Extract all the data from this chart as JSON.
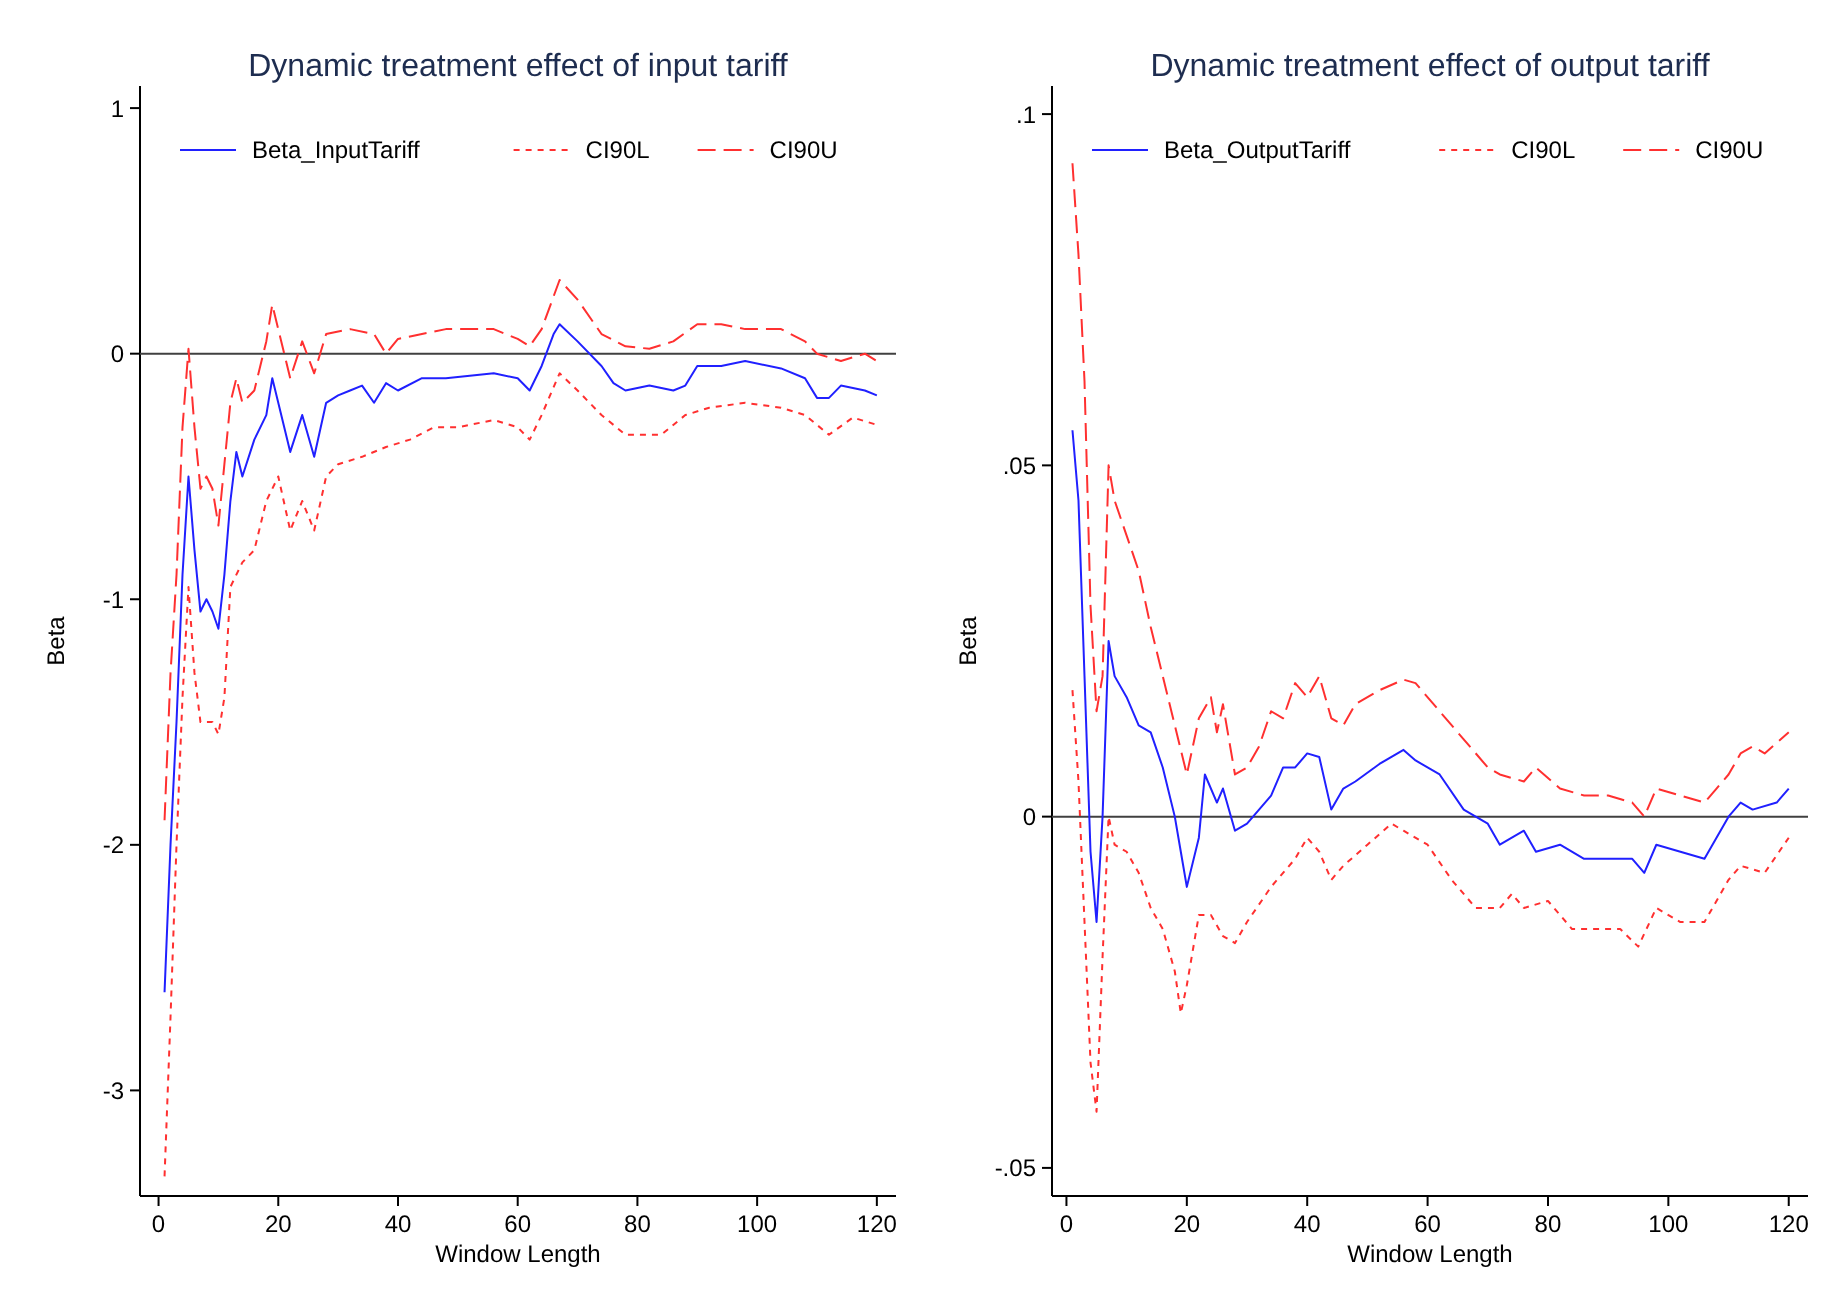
{
  "chart_data": [
    {
      "type": "line",
      "title": "Dynamic treatment effect of input tariff",
      "xlabel": "Window Length",
      "ylabel": "Beta",
      "xlim": [
        -3.1,
        123.2
      ],
      "ylim": [
        -3.43,
        1.09
      ],
      "xticks": [
        0,
        20,
        40,
        60,
        80,
        100,
        120
      ],
      "yticks": [
        -3,
        -2,
        -1,
        0,
        1
      ],
      "grid": false,
      "legend": "top",
      "marker": "none",
      "ref_lines": [
        {
          "axis": "y",
          "value": 0,
          "color": "#404040"
        }
      ],
      "series": [
        {
          "name": "Beta_InputTariff",
          "color": "#2020ff",
          "line_style": "solid",
          "x": [
            1,
            2,
            3,
            4,
            5,
            6,
            7,
            8,
            9,
            10,
            11,
            12,
            13,
            14,
            16,
            18,
            19,
            20,
            22,
            24,
            26,
            28,
            30,
            32,
            34,
            36,
            38,
            40,
            44,
            48,
            52,
            56,
            60,
            62,
            64,
            66,
            67,
            70,
            74,
            76,
            78,
            82,
            86,
            88,
            90,
            94,
            98,
            104,
            108,
            110,
            112,
            114,
            118,
            120
          ],
          "values": [
            -2.6,
            -2.0,
            -1.5,
            -0.9,
            -0.5,
            -0.8,
            -1.05,
            -1.0,
            -1.05,
            -1.12,
            -0.9,
            -0.6,
            -0.4,
            -0.5,
            -0.35,
            -0.25,
            -0.1,
            -0.2,
            -0.4,
            -0.25,
            -0.42,
            -0.2,
            -0.17,
            -0.15,
            -0.13,
            -0.2,
            -0.12,
            -0.15,
            -0.1,
            -0.1,
            -0.09,
            -0.08,
            -0.1,
            -0.15,
            -0.05,
            0.08,
            0.12,
            0.05,
            -0.05,
            -0.12,
            -0.15,
            -0.13,
            -0.15,
            -0.13,
            -0.05,
            -0.05,
            -0.03,
            -0.06,
            -0.1,
            -0.18,
            -0.18,
            -0.13,
            -0.15,
            -0.17
          ]
        },
        {
          "name": "CI90L",
          "color": "#ff3030",
          "line_style": "dotted",
          "x": [
            1,
            2,
            3,
            4,
            5,
            6,
            7,
            8,
            9,
            10,
            11,
            12,
            14,
            16,
            18,
            20,
            22,
            24,
            26,
            28,
            30,
            34,
            38,
            42,
            46,
            50,
            56,
            60,
            62,
            64,
            67,
            70,
            74,
            78,
            84,
            88,
            92,
            98,
            104,
            108,
            112,
            116,
            120
          ],
          "values": [
            -3.35,
            -2.7,
            -2.0,
            -1.4,
            -0.95,
            -1.3,
            -1.5,
            -1.5,
            -1.5,
            -1.55,
            -1.4,
            -0.95,
            -0.85,
            -0.8,
            -0.6,
            -0.5,
            -0.72,
            -0.6,
            -0.72,
            -0.5,
            -0.45,
            -0.42,
            -0.38,
            -0.35,
            -0.3,
            -0.3,
            -0.27,
            -0.3,
            -0.35,
            -0.25,
            -0.08,
            -0.15,
            -0.25,
            -0.33,
            -0.33,
            -0.25,
            -0.22,
            -0.2,
            -0.22,
            -0.25,
            -0.33,
            -0.26,
            -0.29
          ]
        },
        {
          "name": "CI90U",
          "color": "#ff3030",
          "line_style": "dashed",
          "x": [
            1,
            2,
            3,
            4,
            5,
            6,
            7,
            8,
            9,
            10,
            11,
            12,
            13,
            14,
            16,
            18,
            19,
            20,
            22,
            24,
            26,
            28,
            32,
            36,
            38,
            40,
            44,
            48,
            52,
            56,
            60,
            62,
            64,
            67,
            70,
            74,
            78,
            82,
            86,
            90,
            94,
            98,
            104,
            108,
            110,
            114,
            118,
            120
          ],
          "values": [
            -1.9,
            -1.3,
            -0.9,
            -0.3,
            0.02,
            -0.3,
            -0.55,
            -0.5,
            -0.55,
            -0.7,
            -0.45,
            -0.2,
            -0.1,
            -0.2,
            -0.15,
            0.05,
            0.2,
            0.1,
            -0.1,
            0.05,
            -0.08,
            0.08,
            0.1,
            0.08,
            0.0,
            0.06,
            0.08,
            0.1,
            0.1,
            0.1,
            0.06,
            0.03,
            0.1,
            0.3,
            0.22,
            0.08,
            0.03,
            0.02,
            0.05,
            0.12,
            0.12,
            0.1,
            0.1,
            0.05,
            0.0,
            -0.03,
            0.0,
            -0.03
          ]
        }
      ]
    },
    {
      "type": "line",
      "title": "Dynamic treatment effect of output tariff",
      "xlabel": "Window Length",
      "ylabel": "Beta",
      "xlim": [
        -2.4,
        123.2
      ],
      "ylim": [
        -0.054,
        0.104
      ],
      "xticks": [
        0,
        20,
        40,
        60,
        80,
        100,
        120
      ],
      "yticks": [
        {
          "value": -0.05,
          "label": "-.05"
        },
        0,
        {
          "value": 0.05,
          "label": ".05"
        },
        {
          "value": 0.1,
          "label": ".1"
        }
      ],
      "grid": false,
      "legend": "top",
      "marker": "none",
      "ref_lines": [
        {
          "axis": "y",
          "value": 0,
          "color": "#404040"
        }
      ],
      "series": [
        {
          "name": "Beta_OutputTariff",
          "color": "#2020ff",
          "line_style": "solid",
          "x": [
            1,
            2,
            3,
            4,
            5,
            6,
            7,
            8,
            10,
            12,
            14,
            16,
            18,
            19,
            20,
            22,
            23,
            25,
            26,
            28,
            30,
            32,
            34,
            36,
            38,
            40,
            42,
            44,
            46,
            48,
            52,
            56,
            58,
            62,
            66,
            70,
            72,
            76,
            78,
            82,
            86,
            90,
            94,
            96,
            98,
            102,
            106,
            110,
            112,
            114,
            118,
            120
          ],
          "values": [
            0.055,
            0.045,
            0.02,
            -0.005,
            -0.015,
            0.0,
            0.025,
            0.02,
            0.017,
            0.013,
            0.012,
            0.007,
            0.0,
            -0.005,
            -0.01,
            -0.003,
            0.006,
            0.002,
            0.004,
            -0.002,
            -0.001,
            0.001,
            0.003,
            0.007,
            0.007,
            0.009,
            0.0085,
            0.001,
            0.004,
            0.005,
            0.0075,
            0.0095,
            0.008,
            0.006,
            0.001,
            -0.001,
            -0.004,
            -0.002,
            -0.005,
            -0.004,
            -0.006,
            -0.006,
            -0.006,
            -0.008,
            -0.004,
            -0.005,
            -0.006,
            0.0,
            0.002,
            0.001,
            0.002,
            0.004
          ]
        },
        {
          "name": "CI90L",
          "color": "#ff3030",
          "line_style": "dotted",
          "x": [
            1,
            2,
            3,
            4,
            5,
            6,
            7,
            8,
            10,
            12,
            14,
            16,
            18,
            19,
            20,
            22,
            24,
            26,
            28,
            30,
            34,
            38,
            40,
            42,
            44,
            46,
            50,
            54,
            56,
            60,
            64,
            68,
            72,
            74,
            76,
            80,
            84,
            88,
            92,
            95,
            98,
            102,
            106,
            110,
            112,
            116,
            120
          ],
          "values": [
            0.018,
            0.005,
            -0.015,
            -0.035,
            -0.042,
            -0.02,
            0.0,
            -0.004,
            -0.005,
            -0.008,
            -0.013,
            -0.016,
            -0.022,
            -0.028,
            -0.024,
            -0.014,
            -0.014,
            -0.017,
            -0.018,
            -0.015,
            -0.01,
            -0.006,
            -0.003,
            -0.005,
            -0.009,
            -0.007,
            -0.004,
            -0.001,
            -0.002,
            -0.004,
            -0.009,
            -0.013,
            -0.013,
            -0.011,
            -0.013,
            -0.012,
            -0.016,
            -0.016,
            -0.016,
            -0.0185,
            -0.013,
            -0.015,
            -0.015,
            -0.009,
            -0.007,
            -0.008,
            -0.003
          ]
        },
        {
          "name": "CI90U",
          "color": "#ff3030",
          "line_style": "dashed",
          "x": [
            1,
            2,
            3,
            4,
            5,
            6,
            7,
            8,
            10,
            12,
            14,
            16,
            18,
            20,
            22,
            24,
            25,
            26,
            28,
            30,
            32,
            34,
            36,
            38,
            40,
            42,
            44,
            46,
            48,
            52,
            56,
            58,
            62,
            66,
            70,
            72,
            76,
            78,
            82,
            86,
            90,
            94,
            96,
            98,
            102,
            106,
            108,
            110,
            112,
            114,
            116,
            120
          ],
          "values": [
            0.093,
            0.08,
            0.062,
            0.03,
            0.015,
            0.02,
            0.05,
            0.045,
            0.04,
            0.035,
            0.027,
            0.02,
            0.013,
            0.006,
            0.014,
            0.017,
            0.012,
            0.016,
            0.006,
            0.007,
            0.01,
            0.015,
            0.014,
            0.019,
            0.017,
            0.02,
            0.014,
            0.013,
            0.016,
            0.018,
            0.0195,
            0.019,
            0.015,
            0.011,
            0.007,
            0.006,
            0.005,
            0.007,
            0.004,
            0.003,
            0.003,
            0.002,
            0.0,
            0.004,
            0.003,
            0.002,
            0.004,
            0.006,
            0.009,
            0.01,
            0.009,
            0.012
          ]
        }
      ]
    }
  ]
}
